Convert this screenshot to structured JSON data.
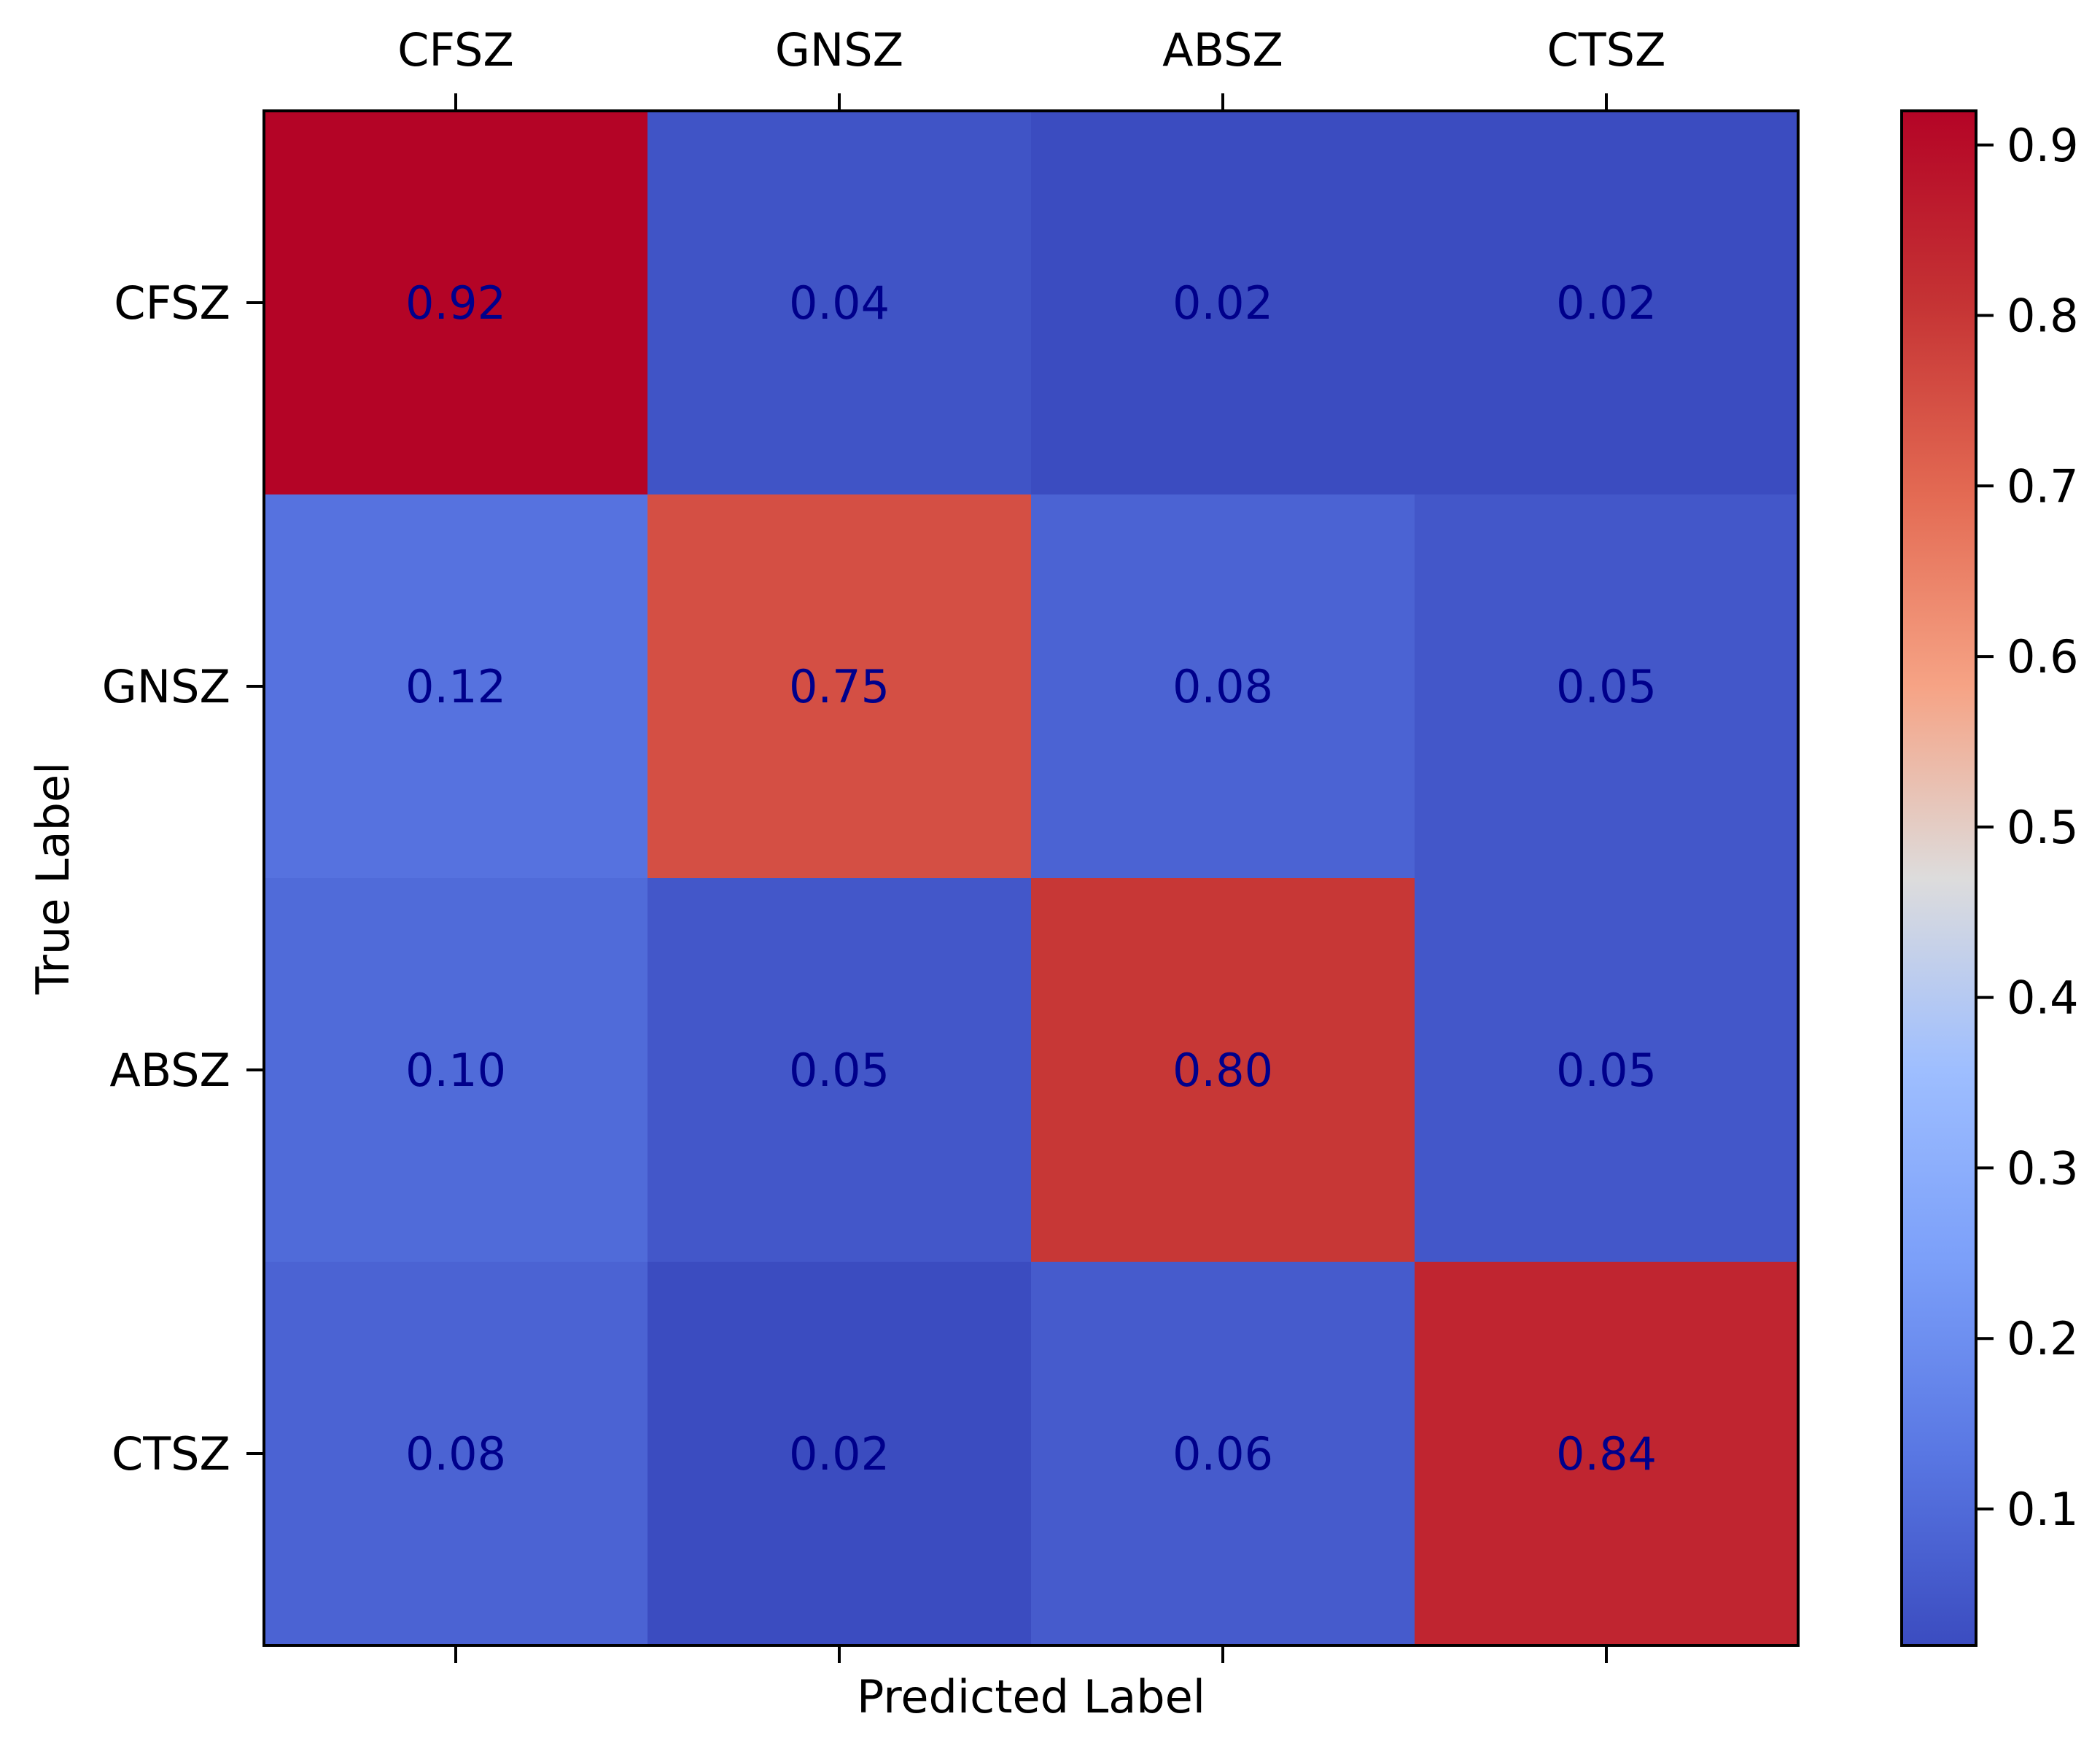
{
  "chart_data": {
    "type": "heatmap",
    "title": "",
    "xlabel": "Predicted Label",
    "ylabel": "True Label",
    "x_categories": [
      "CFSZ",
      "GNSZ",
      "ABSZ",
      "CTSZ"
    ],
    "y_categories": [
      "CFSZ",
      "GNSZ",
      "ABSZ",
      "CTSZ"
    ],
    "values": [
      [
        0.92,
        0.04,
        0.02,
        0.02
      ],
      [
        0.12,
        0.75,
        0.08,
        0.05
      ],
      [
        0.1,
        0.05,
        0.8,
        0.05
      ],
      [
        0.08,
        0.02,
        0.06,
        0.84
      ]
    ],
    "value_labels": [
      [
        "0.92",
        "0.04",
        "0.02",
        "0.02"
      ],
      [
        "0.12",
        "0.75",
        "0.08",
        "0.05"
      ],
      [
        "0.10",
        "0.05",
        "0.80",
        "0.05"
      ],
      [
        "0.08",
        "0.02",
        "0.06",
        "0.84"
      ]
    ],
    "colormap": "coolwarm",
    "color_range": [
      0.02,
      0.92
    ],
    "colorbar_ticks": [
      0.1,
      0.2,
      0.3,
      0.4,
      0.5,
      0.6,
      0.7,
      0.8,
      0.9
    ],
    "colorbar_tick_labels": [
      "0.1",
      "0.2",
      "0.3",
      "0.4",
      "0.5",
      "0.6",
      "0.7",
      "0.8",
      "0.9"
    ],
    "x_tick_position": "top",
    "annotation_color": "#00008b"
  }
}
